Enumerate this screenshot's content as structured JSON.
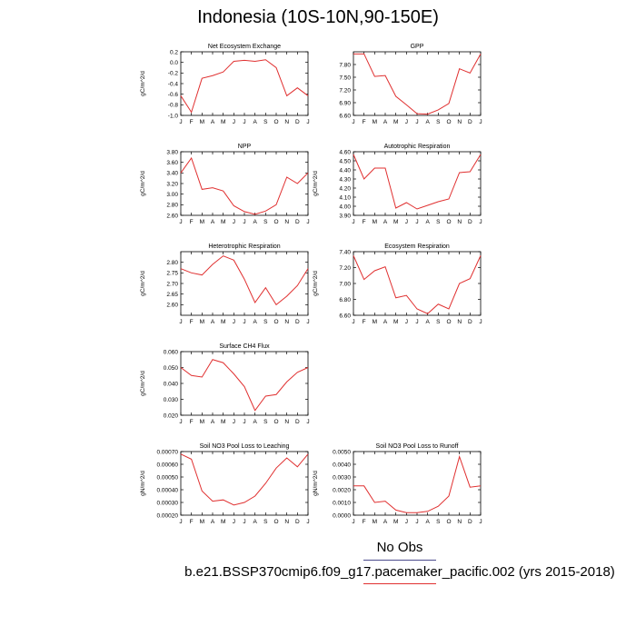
{
  "page": {
    "title": "Indonesia (10S-10N,90-150E)"
  },
  "legend": {
    "obs_label": "No Obs",
    "case_label": "b.e21.BSSP370cmip6.f09_g17.pacemaker_pacific.002 (yrs 2015-2018)",
    "case_color": "#e03030",
    "obs_color": "#4a4a8c"
  },
  "chart_data": [
    {
      "type": "line",
      "title": "Net Ecosystem Exchange",
      "ylabel": "gC/m^2/d",
      "categories": [
        "J",
        "F",
        "M",
        "A",
        "M",
        "J",
        "J",
        "A",
        "S",
        "O",
        "N",
        "D",
        "J"
      ],
      "ylim": [
        -1.0,
        0.2
      ],
      "yticks": [
        -1.0,
        -0.8,
        -0.6,
        -0.4,
        -0.2,
        0.0,
        0.2
      ],
      "ytick_labels": [
        "-1.0",
        "-0.8",
        "-0.6",
        "-0.4",
        "-0.2",
        "0.0",
        "0.2"
      ],
      "series": [
        {
          "color": "#e03030",
          "values": [
            -0.63,
            -0.94,
            -0.3,
            -0.25,
            -0.18,
            0.02,
            0.04,
            0.02,
            0.05,
            -0.1,
            -0.63,
            -0.48,
            -0.63
          ]
        }
      ]
    },
    {
      "type": "line",
      "title": "GPP",
      "ylabel": "",
      "categories": [
        "J",
        "F",
        "M",
        "A",
        "M",
        "J",
        "J",
        "A",
        "S",
        "O",
        "N",
        "D",
        "J"
      ],
      "ylim": [
        6.6,
        8.1
      ],
      "yticks": [
        6.6,
        6.9,
        7.2,
        7.5,
        7.8
      ],
      "ytick_labels": [
        "6.60",
        "6.90",
        "7.20",
        "7.50",
        "7.80"
      ],
      "series": [
        {
          "color": "#e03030",
          "values": [
            8.05,
            8.05,
            7.52,
            7.54,
            7.05,
            6.85,
            6.64,
            6.63,
            6.73,
            6.88,
            7.7,
            7.6,
            8.05
          ]
        }
      ]
    },
    {
      "type": "line",
      "title": "NPP",
      "ylabel": "gC/m^2/d",
      "categories": [
        "J",
        "F",
        "M",
        "A",
        "M",
        "J",
        "J",
        "A",
        "S",
        "O",
        "N",
        "D",
        "J"
      ],
      "ylim": [
        2.6,
        3.8
      ],
      "yticks": [
        2.6,
        2.8,
        3.0,
        3.2,
        3.4,
        3.6,
        3.8
      ],
      "ytick_labels": [
        "2.60",
        "2.80",
        "3.00",
        "3.20",
        "3.40",
        "3.60",
        "3.80"
      ],
      "series": [
        {
          "color": "#e03030",
          "values": [
            3.4,
            3.68,
            3.09,
            3.12,
            3.06,
            2.78,
            2.67,
            2.62,
            2.68,
            2.8,
            3.32,
            3.2,
            3.4
          ]
        }
      ]
    },
    {
      "type": "line",
      "title": "Autotrophic Respiration",
      "ylabel": "gC/m^2/d",
      "categories": [
        "J",
        "F",
        "M",
        "A",
        "M",
        "J",
        "J",
        "A",
        "S",
        "O",
        "N",
        "D",
        "J"
      ],
      "ylim": [
        3.9,
        4.6
      ],
      "yticks": [
        3.9,
        4.0,
        4.1,
        4.2,
        4.3,
        4.4,
        4.5,
        4.6
      ],
      "ytick_labels": [
        "3.90",
        "4.00",
        "4.10",
        "4.20",
        "4.30",
        "4.40",
        "4.50",
        "4.60"
      ],
      "series": [
        {
          "color": "#e03030",
          "values": [
            4.57,
            4.3,
            4.42,
            4.42,
            3.98,
            4.04,
            3.97,
            4.01,
            4.05,
            4.08,
            4.37,
            4.38,
            4.57
          ]
        }
      ]
    },
    {
      "type": "line",
      "title": "Heterotrophic Respiration",
      "ylabel": "gC/m^2/d",
      "categories": [
        "J",
        "F",
        "M",
        "A",
        "M",
        "J",
        "J",
        "A",
        "S",
        "O",
        "N",
        "D",
        "J"
      ],
      "ylim": [
        2.55,
        2.85
      ],
      "yticks": [
        2.6,
        2.65,
        2.7,
        2.75,
        2.8
      ],
      "ytick_labels": [
        "2.60",
        "2.65",
        "2.70",
        "2.75",
        "2.80"
      ],
      "series": [
        {
          "color": "#e03030",
          "values": [
            2.77,
            2.75,
            2.74,
            2.79,
            2.83,
            2.81,
            2.72,
            2.61,
            2.68,
            2.6,
            2.64,
            2.69,
            2.77
          ]
        }
      ]
    },
    {
      "type": "line",
      "title": "Ecosystem Respiration",
      "ylabel": "gC/m^2/d",
      "categories": [
        "J",
        "F",
        "M",
        "A",
        "M",
        "J",
        "J",
        "A",
        "S",
        "O",
        "N",
        "D",
        "J"
      ],
      "ylim": [
        6.6,
        7.4
      ],
      "yticks": [
        6.6,
        6.8,
        7.0,
        7.2,
        7.4
      ],
      "ytick_labels": [
        "6.60",
        "6.80",
        "7.00",
        "7.20",
        "7.40"
      ],
      "series": [
        {
          "color": "#e03030",
          "values": [
            7.35,
            7.05,
            7.16,
            7.21,
            6.82,
            6.85,
            6.68,
            6.62,
            6.74,
            6.68,
            7.0,
            7.06,
            7.35
          ]
        }
      ]
    },
    {
      "type": "line",
      "title": "Surface CH4 Flux",
      "ylabel": "gC/m^2/d",
      "categories": [
        "J",
        "F",
        "M",
        "A",
        "M",
        "J",
        "J",
        "A",
        "S",
        "O",
        "N",
        "D",
        "J"
      ],
      "ylim": [
        0.02,
        0.06
      ],
      "yticks": [
        0.02,
        0.03,
        0.04,
        0.05,
        0.06
      ],
      "ytick_labels": [
        "0.020",
        "0.030",
        "0.040",
        "0.050",
        "0.060"
      ],
      "series": [
        {
          "color": "#e03030",
          "values": [
            0.05,
            0.045,
            0.044,
            0.055,
            0.053,
            0.046,
            0.038,
            0.023,
            0.032,
            0.033,
            0.041,
            0.047,
            0.05
          ]
        }
      ]
    },
    {
      "type": "line",
      "title": "Soil NO3 Pool Loss to Leaching",
      "ylabel": "gN/m^2/d",
      "categories": [
        "J",
        "F",
        "M",
        "A",
        "M",
        "J",
        "J",
        "A",
        "S",
        "O",
        "N",
        "D",
        "J"
      ],
      "ylim": [
        0.0002,
        0.0007
      ],
      "yticks": [
        0.0002,
        0.0003,
        0.0004,
        0.0005,
        0.0006,
        0.0007
      ],
      "ytick_labels": [
        "0.00020",
        "0.00030",
        "0.00040",
        "0.00050",
        "0.00060",
        "0.00070"
      ],
      "series": [
        {
          "color": "#e03030",
          "values": [
            0.00068,
            0.00064,
            0.00039,
            0.00031,
            0.00032,
            0.00028,
            0.0003,
            0.00035,
            0.00045,
            0.00057,
            0.00065,
            0.00058,
            0.00068
          ]
        }
      ]
    },
    {
      "type": "line",
      "title": "Soil NO3 Pool Loss to Runoff",
      "ylabel": "gN/m^2/d",
      "categories": [
        "J",
        "F",
        "M",
        "A",
        "M",
        "J",
        "J",
        "A",
        "S",
        "O",
        "N",
        "D",
        "J"
      ],
      "ylim": [
        0.0,
        0.005
      ],
      "yticks": [
        0.0,
        0.001,
        0.002,
        0.003,
        0.004,
        0.005
      ],
      "ytick_labels": [
        "0.0000",
        "0.0010",
        "0.0020",
        "0.0030",
        "0.0040",
        "0.0050"
      ],
      "series": [
        {
          "color": "#e03030",
          "values": [
            0.0023,
            0.0023,
            0.001,
            0.0011,
            0.0004,
            0.0002,
            0.0002,
            0.0003,
            0.0007,
            0.0015,
            0.0046,
            0.0022,
            0.0023
          ]
        }
      ]
    }
  ]
}
